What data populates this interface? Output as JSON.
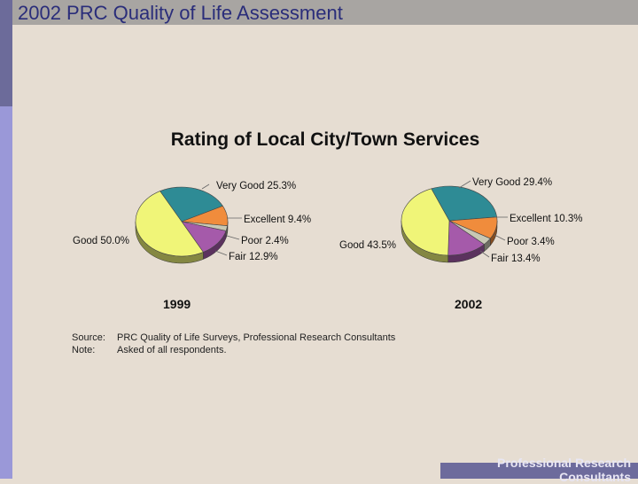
{
  "slide": {
    "title": "2002 PRC Quality of Life Assessment"
  },
  "chart_data": [
    {
      "type": "pie",
      "title": "Rating of Local City/Town Services",
      "label": "1999",
      "slices": [
        {
          "name": "Very Good",
          "value": 25.3,
          "display": "25.3%",
          "color": "#2e8b95"
        },
        {
          "name": "Excellent",
          "value": 9.4,
          "display": "9.4%",
          "color": "#f08c3c"
        },
        {
          "name": "Poor",
          "value": 2.4,
          "display": "2.4%",
          "color": "#c8c8b4"
        },
        {
          "name": "Fair",
          "value": 12.9,
          "display": "12.9%",
          "color": "#a55aaa"
        },
        {
          "name": "Good",
          "value": 50.0,
          "display": "50.0%",
          "color": "#f0f578"
        }
      ]
    },
    {
      "type": "pie",
      "title": "Rating of Local City/Town Services",
      "label": "2002",
      "slices": [
        {
          "name": "Very Good",
          "value": 29.4,
          "display": "29.4%",
          "color": "#2e8b95"
        },
        {
          "name": "Excellent",
          "value": 10.3,
          "display": "10.3%",
          "color": "#f08c3c"
        },
        {
          "name": "Poor",
          "value": 3.4,
          "display": "3.4%",
          "color": "#c8c8b4"
        },
        {
          "name": "Fair",
          "value": 13.4,
          "display": "13.4%",
          "color": "#a55aaa"
        },
        {
          "name": "Good",
          "value": 43.5,
          "display": "43.5%",
          "color": "#f0f578"
        }
      ]
    }
  ],
  "notes": {
    "source_key": "Source:",
    "source_value": "PRC Quality of Life Surveys, Professional Research Consultants",
    "note_key": "Note:",
    "note_value": "Asked of all respondents."
  },
  "footer": {
    "text": "Professional Research Consultants"
  }
}
